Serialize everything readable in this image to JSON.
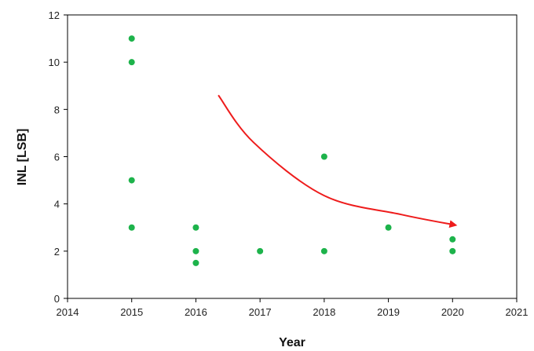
{
  "chart_data": {
    "type": "scatter",
    "xlabel": "Year",
    "ylabel": "INL [LSB]",
    "xlim": [
      2014,
      2021
    ],
    "ylim": [
      0,
      12
    ],
    "x_ticks": [
      "2014",
      "2015",
      "2016",
      "2017",
      "2018",
      "2019",
      "2020",
      "2021"
    ],
    "y_ticks": [
      "0",
      "2",
      "4",
      "6",
      "8",
      "10",
      "12"
    ],
    "grid": false,
    "legend": "none",
    "point_color": "#1db34b",
    "trend_arrow_color": "#ee1c1c",
    "points": [
      {
        "x": 2015,
        "y": 11
      },
      {
        "x": 2015,
        "y": 10
      },
      {
        "x": 2015,
        "y": 5
      },
      {
        "x": 2015,
        "y": 3
      },
      {
        "x": 2016,
        "y": 3
      },
      {
        "x": 2016,
        "y": 2
      },
      {
        "x": 2016,
        "y": 1.5
      },
      {
        "x": 2017,
        "y": 2
      },
      {
        "x": 2018,
        "y": 6
      },
      {
        "x": 2018,
        "y": 2
      },
      {
        "x": 2019,
        "y": 3
      },
      {
        "x": 2020,
        "y": 2.5
      },
      {
        "x": 2020,
        "y": 2
      }
    ],
    "trend_arrow": [
      {
        "x": 2016.35,
        "y": 8.6
      },
      {
        "x": 2016.9,
        "y": 6.6
      },
      {
        "x": 2018.0,
        "y": 4.35
      },
      {
        "x": 2019.2,
        "y": 3.55
      },
      {
        "x": 2020.05,
        "y": 3.1
      }
    ]
  }
}
